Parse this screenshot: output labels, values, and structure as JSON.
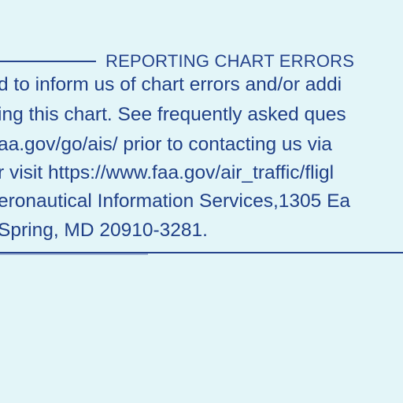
{
  "notice": {
    "heading": "REPORTING CHART ERRORS",
    "lines": [
      "d to inform us of chart errors and/or addi",
      "ing this chart. See frequently asked ques",
      "aa.gov/go/ais/ prior to contacting us via",
      "r visit https://www.faa.gov/air_traffic/fligl",
      "eronautical Information Services,1305 Ea",
      "Spring, MD 20910-3281."
    ]
  },
  "colors": {
    "background": "#e3f5f8",
    "text": "#1f3f86",
    "rule": "#26448c"
  }
}
